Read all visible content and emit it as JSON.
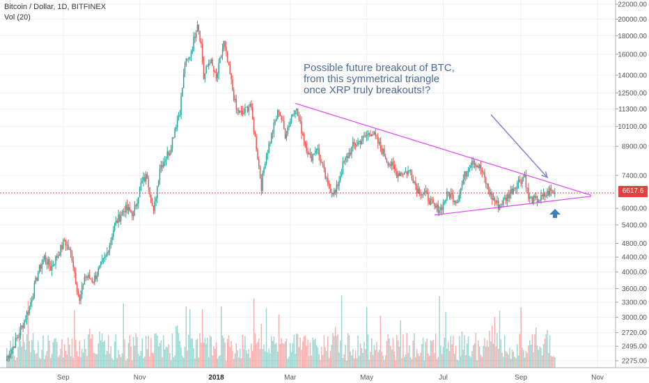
{
  "legend": {
    "symbol": "Bitcoin / Dollar, 1D, BITFINEX",
    "volume": "Vol (20)"
  },
  "annotation": {
    "lines": [
      "Possible future breakout of BTC,",
      "from this symmetrical triangle",
      "once XRP truly breakouts!?"
    ]
  },
  "current_price": "6617.6",
  "colors": {
    "up": "#26a69a",
    "down": "#ef5350",
    "trendline": "#e040fb",
    "arrow": "#7986cb",
    "up_arrow": "#3f7fbf",
    "price_line": "#e04040"
  },
  "chart_data": {
    "type": "candlestick",
    "title": "Bitcoin / Dollar, 1D, BITFINEX",
    "y_scale": "log",
    "y_ticks": [
      22000,
      20000,
      18000,
      16000,
      14000,
      12500,
      11300,
      10100,
      8900,
      7400,
      6000,
      5400,
      4800,
      4400,
      4000,
      3600,
      3300,
      3000,
      2720,
      2495,
      2275
    ],
    "x_ticks": [
      {
        "label": "Sep",
        "date": "2017-09-01"
      },
      {
        "label": "Nov",
        "date": "2017-11-01"
      },
      {
        "label": "2018",
        "date": "2018-01-01",
        "bold": true
      },
      {
        "label": "Mar",
        "date": "2018-03-01"
      },
      {
        "label": "May",
        "date": "2018-05-01"
      },
      {
        "label": "Jul",
        "date": "2018-07-01"
      },
      {
        "label": "Sep",
        "date": "2018-09-01"
      },
      {
        "label": "Nov",
        "date": "2018-11-01"
      }
    ],
    "price_path": [
      {
        "date": "2017-07-18",
        "close": 2300
      },
      {
        "date": "2017-07-28",
        "close": 2700
      },
      {
        "date": "2017-08-05",
        "close": 3200
      },
      {
        "date": "2017-08-12",
        "close": 4000
      },
      {
        "date": "2017-08-17",
        "close": 4400
      },
      {
        "date": "2017-08-22",
        "close": 4100
      },
      {
        "date": "2017-08-31",
        "close": 4700
      },
      {
        "date": "2017-09-02",
        "close": 4900
      },
      {
        "date": "2017-09-08",
        "close": 4400
      },
      {
        "date": "2017-09-14",
        "close": 3300
      },
      {
        "date": "2017-09-18",
        "close": 3900
      },
      {
        "date": "2017-09-25",
        "close": 3800
      },
      {
        "date": "2017-10-05",
        "close": 4400
      },
      {
        "date": "2017-10-12",
        "close": 5400
      },
      {
        "date": "2017-10-20",
        "close": 6000
      },
      {
        "date": "2017-10-27",
        "close": 5800
      },
      {
        "date": "2017-11-02",
        "close": 7000
      },
      {
        "date": "2017-11-07",
        "close": 7400
      },
      {
        "date": "2017-11-12",
        "close": 5800
      },
      {
        "date": "2017-11-17",
        "close": 7800
      },
      {
        "date": "2017-11-25",
        "close": 8700
      },
      {
        "date": "2017-11-29",
        "close": 10000
      },
      {
        "date": "2017-12-03",
        "close": 11200
      },
      {
        "date": "2017-12-07",
        "close": 15000
      },
      {
        "date": "2017-12-10",
        "close": 15500
      },
      {
        "date": "2017-12-13",
        "close": 16800
      },
      {
        "date": "2017-12-17",
        "close": 19700
      },
      {
        "date": "2017-12-20",
        "close": 17000
      },
      {
        "date": "2017-12-22",
        "close": 13800
      },
      {
        "date": "2017-12-27",
        "close": 15500
      },
      {
        "date": "2018-01-01",
        "close": 13600
      },
      {
        "date": "2018-01-07",
        "close": 17200
      },
      {
        "date": "2018-01-12",
        "close": 14000
      },
      {
        "date": "2018-01-17",
        "close": 11200
      },
      {
        "date": "2018-01-22",
        "close": 10900
      },
      {
        "date": "2018-01-28",
        "close": 11700
      },
      {
        "date": "2018-02-02",
        "close": 8900
      },
      {
        "date": "2018-02-06",
        "close": 6900
      },
      {
        "date": "2018-02-09",
        "close": 8200
      },
      {
        "date": "2018-02-16",
        "close": 10100
      },
      {
        "date": "2018-02-20",
        "close": 11300
      },
      {
        "date": "2018-02-25",
        "close": 9600
      },
      {
        "date": "2018-03-05",
        "close": 11500
      },
      {
        "date": "2018-03-11",
        "close": 9600
      },
      {
        "date": "2018-03-17",
        "close": 8200
      },
      {
        "date": "2018-03-22",
        "close": 8900
      },
      {
        "date": "2018-03-31",
        "close": 6900
      },
      {
        "date": "2018-04-06",
        "close": 6600
      },
      {
        "date": "2018-04-12",
        "close": 7900
      },
      {
        "date": "2018-04-20",
        "close": 8900
      },
      {
        "date": "2018-04-29",
        "close": 9400
      },
      {
        "date": "2018-05-05",
        "close": 9800
      },
      {
        "date": "2018-05-10",
        "close": 9100
      },
      {
        "date": "2018-05-17",
        "close": 8200
      },
      {
        "date": "2018-05-25",
        "close": 7500
      },
      {
        "date": "2018-06-05",
        "close": 7600
      },
      {
        "date": "2018-06-10",
        "close": 6800
      },
      {
        "date": "2018-06-18",
        "close": 6500
      },
      {
        "date": "2018-06-24",
        "close": 6000
      },
      {
        "date": "2018-06-29",
        "close": 6000
      },
      {
        "date": "2018-07-05",
        "close": 6600
      },
      {
        "date": "2018-07-12",
        "close": 6300
      },
      {
        "date": "2018-07-18",
        "close": 7400
      },
      {
        "date": "2018-07-24",
        "close": 8200
      },
      {
        "date": "2018-07-31",
        "close": 7700
      },
      {
        "date": "2018-08-08",
        "close": 6500
      },
      {
        "date": "2018-08-14",
        "close": 6100
      },
      {
        "date": "2018-08-20",
        "close": 6400
      },
      {
        "date": "2018-08-28",
        "close": 7000
      },
      {
        "date": "2018-09-04",
        "close": 7400
      },
      {
        "date": "2018-09-07",
        "close": 6400
      },
      {
        "date": "2018-09-12",
        "close": 6300
      },
      {
        "date": "2018-09-18",
        "close": 6400
      },
      {
        "date": "2018-09-24",
        "close": 6700
      },
      {
        "date": "2018-09-28",
        "close": 6617.6
      }
    ],
    "volume_scale_note": "relative",
    "trendlines": [
      {
        "name": "upper",
        "from": {
          "date": "2018-03-05",
          "price": 11700
        },
        "to": {
          "date": "2018-10-27",
          "price": 6520
        }
      },
      {
        "name": "lower",
        "from": {
          "date": "2018-06-24",
          "price": 5750
        },
        "to": {
          "date": "2018-10-27",
          "price": 6480
        }
      }
    ],
    "arrow": {
      "from": {
        "date": "2018-08-08",
        "price": 10900
      },
      "to": {
        "date": "2018-09-22",
        "price": 7300
      }
    }
  }
}
